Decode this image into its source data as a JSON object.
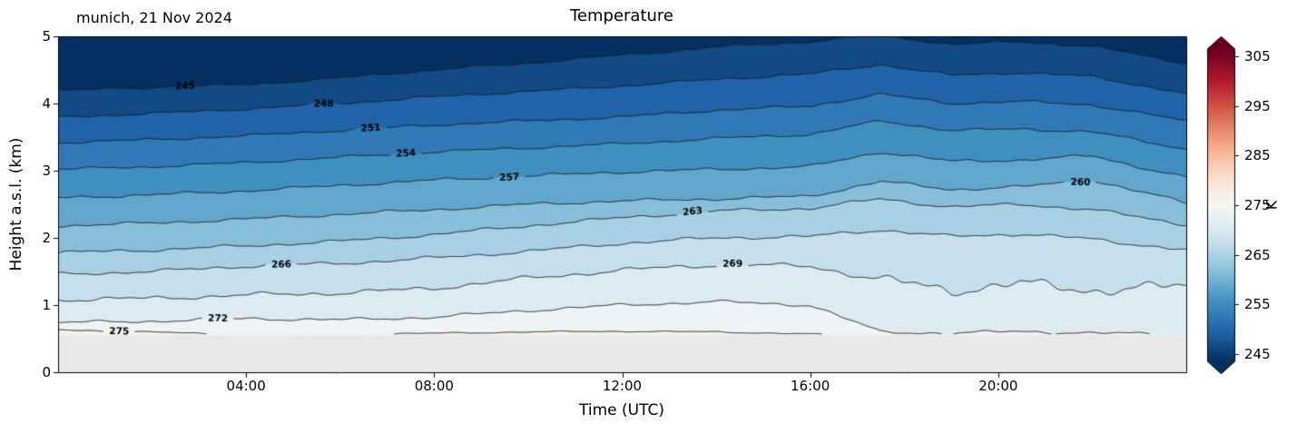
{
  "chart_data": {
    "type": "contour",
    "title": "Temperature",
    "annotation": "munich, 21 Nov 2024",
    "xlabel": "Time (UTC)",
    "ylabel": "Height a.s.l. (km)",
    "xlim_hours": [
      0,
      24
    ],
    "ylim_km": [
      0,
      5
    ],
    "xticks": [
      {
        "hour": 4,
        "label": "04:00"
      },
      {
        "hour": 8,
        "label": "08:00"
      },
      {
        "hour": 12,
        "label": "12:00"
      },
      {
        "hour": 16,
        "label": "16:00"
      },
      {
        "hour": 20,
        "label": "20:00"
      }
    ],
    "yticks": [
      {
        "value": 0,
        "label": "0"
      },
      {
        "value": 1,
        "label": "1"
      },
      {
        "value": 2,
        "label": "2"
      },
      {
        "value": 3,
        "label": "3"
      },
      {
        "value": 4,
        "label": "4"
      },
      {
        "value": 5,
        "label": "5"
      }
    ],
    "colorbar": {
      "label": "K",
      "ticks": [
        {
          "value": 245,
          "label": "245"
        },
        {
          "value": 255,
          "label": "255"
        },
        {
          "value": 265,
          "label": "265"
        },
        {
          "value": 275,
          "label": "275"
        },
        {
          "value": 285,
          "label": "285"
        },
        {
          "value": 295,
          "label": "295"
        },
        {
          "value": 305,
          "label": "305"
        }
      ],
      "vmin": 243.5,
      "vmax": 306.5,
      "cmap": "RdBu_r",
      "extend": "both",
      "cmap_colors": [
        "#053061",
        "#2166ac",
        "#4393c3",
        "#92c5de",
        "#d1e5f0",
        "#f7f7f7",
        "#fddbc7",
        "#f4a582",
        "#d6604d",
        "#b2182b",
        "#67001f"
      ]
    },
    "contour_interval_K": 3,
    "levels_K": [
      245,
      248,
      251,
      254,
      257,
      260,
      263,
      266,
      269,
      272,
      275
    ],
    "times_hours": [
      0,
      2,
      4,
      6,
      8,
      10,
      12,
      14,
      16,
      17.5,
      19,
      20.5,
      22,
      24
    ],
    "contour_heights_km": [
      [
        4.19,
        4.24,
        4.28,
        4.38,
        4.5,
        4.6,
        4.72,
        4.84,
        4.92,
        5.02,
        4.88,
        4.92,
        4.85,
        4.6
      ],
      [
        3.8,
        3.85,
        3.92,
        4.0,
        4.1,
        4.18,
        4.26,
        4.36,
        4.44,
        4.58,
        4.42,
        4.46,
        4.4,
        4.15
      ],
      [
        3.42,
        3.46,
        3.52,
        3.6,
        3.68,
        3.74,
        3.8,
        3.9,
        3.96,
        4.14,
        4.0,
        4.03,
        3.98,
        3.74
      ],
      [
        3.02,
        3.06,
        3.12,
        3.2,
        3.28,
        3.34,
        3.4,
        3.48,
        3.54,
        3.74,
        3.6,
        3.62,
        3.58,
        3.32
      ],
      [
        2.6,
        2.64,
        2.7,
        2.78,
        2.86,
        2.92,
        2.98,
        3.02,
        3.06,
        3.28,
        3.14,
        3.16,
        3.22,
        2.9
      ],
      [
        2.18,
        2.22,
        2.28,
        2.35,
        2.42,
        2.5,
        2.55,
        2.58,
        2.62,
        2.84,
        2.72,
        2.76,
        2.86,
        2.52
      ],
      [
        1.78,
        1.82,
        1.88,
        1.95,
        2.05,
        2.18,
        2.3,
        2.4,
        2.44,
        2.58,
        2.46,
        2.5,
        2.42,
        2.2
      ],
      [
        1.46,
        1.5,
        1.58,
        1.62,
        1.7,
        1.8,
        1.92,
        2.0,
        2.02,
        2.12,
        2.02,
        2.06,
        1.98,
        1.82
      ],
      [
        1.08,
        1.1,
        1.15,
        1.18,
        1.25,
        1.4,
        1.52,
        1.6,
        1.58,
        1.38,
        1.22,
        1.32,
        1.22,
        1.28
      ],
      [
        0.74,
        0.76,
        0.8,
        0.78,
        0.82,
        0.92,
        1.0,
        1.05,
        1.0,
        0.6,
        0.58,
        0.61,
        0.58,
        0.57
      ],
      [
        0.63,
        0.6,
        0.55,
        0.56,
        0.58,
        0.6,
        0.61,
        0.6,
        0.57,
        0.5,
        0.5,
        0.55,
        0.56,
        0.5
      ]
    ],
    "terrain_height_km": 0.55,
    "terrain_color": "#e8e8e8",
    "contour_line_color": "#1b1b1b",
    "contour_labels": [
      {
        "text": "245",
        "level": 245,
        "t_hours": 2.7
      },
      {
        "text": "248",
        "level": 248,
        "t_hours": 5.65
      },
      {
        "text": "251",
        "level": 251,
        "t_hours": 6.65
      },
      {
        "text": "254",
        "level": 254,
        "t_hours": 7.4
      },
      {
        "text": "257",
        "level": 257,
        "t_hours": 9.6
      },
      {
        "text": "260",
        "level": 260,
        "t_hours": 21.75
      },
      {
        "text": "263",
        "level": 263,
        "t_hours": 13.5
      },
      {
        "text": "266",
        "level": 266,
        "t_hours": 4.75
      },
      {
        "text": "269",
        "level": 269,
        "t_hours": 14.35
      },
      {
        "text": "272",
        "level": 272,
        "t_hours": 3.4
      },
      {
        "text": "275",
        "level": 275,
        "t_hours": 1.3
      }
    ]
  }
}
